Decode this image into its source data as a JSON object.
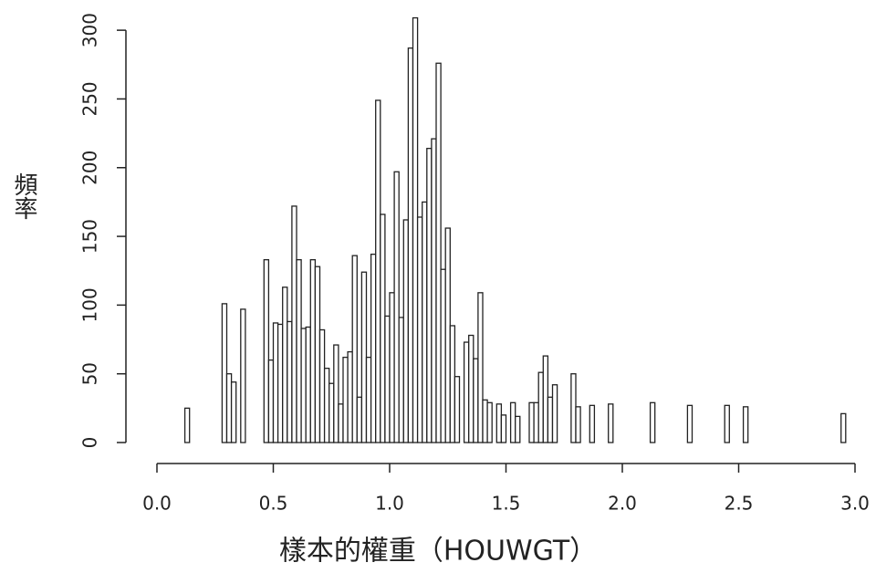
{
  "chart_data": {
    "type": "histogram",
    "xlabel": "樣本的權重（HOUWGT）",
    "ylabel": "頻率",
    "bins": [
      0,
      0.02,
      0.04,
      0.06,
      0.08,
      0.1,
      0.12,
      0.14,
      0.16,
      0.18,
      0.2,
      0.22,
      0.24,
      0.26,
      0.28,
      0.3,
      0.32,
      0.34,
      0.36,
      0.38,
      0.4,
      0.42,
      0.44,
      0.46,
      0.48,
      0.5,
      0.52,
      0.54,
      0.56,
      0.58,
      0.6,
      0.62,
      0.64,
      0.66,
      0.68,
      0.7,
      0.72,
      0.74,
      0.76,
      0.78,
      0.8,
      0.82,
      0.84,
      0.86,
      0.88,
      0.9,
      0.92,
      0.94,
      0.96,
      0.98,
      1,
      1.02,
      1.04,
      1.06,
      1.08,
      1.1,
      1.12,
      1.14,
      1.16,
      1.18,
      1.2,
      1.22,
      1.24,
      1.26,
      1.28,
      1.3,
      1.32,
      1.34,
      1.36,
      1.38,
      1.4,
      1.42,
      1.44,
      1.46,
      1.48,
      1.5,
      1.52,
      1.54,
      1.56,
      1.58,
      1.6,
      1.62,
      1.64,
      1.66,
      1.68,
      1.7,
      1.72,
      1.74,
      1.76,
      1.78,
      1.8,
      1.82,
      1.84,
      1.86,
      1.88,
      1.9,
      1.92,
      1.94,
      1.96,
      1.98,
      2,
      2.02,
      2.04,
      2.06,
      2.08,
      2.1,
      2.12,
      2.14,
      2.16,
      2.18,
      2.2,
      2.22,
      2.24,
      2.26,
      2.28,
      2.3,
      2.32,
      2.34,
      2.36,
      2.38,
      2.4,
      2.42,
      2.44,
      2.46,
      2.48,
      2.5,
      2.52,
      2.54,
      2.56,
      2.58,
      2.6,
      2.62,
      2.64,
      2.66,
      2.68,
      2.7,
      2.72,
      2.74,
      2.76,
      2.78,
      2.8,
      2.82,
      2.84,
      2.86,
      2.88,
      2.9,
      2.92,
      2.94,
      2.96,
      2.98,
      3
    ],
    "counts": [
      0,
      0,
      0,
      0,
      0,
      0,
      25,
      0,
      0,
      0,
      0,
      0,
      0,
      0,
      101,
      50,
      44,
      0,
      97,
      0,
      0,
      0,
      0,
      133,
      60,
      87,
      86,
      113,
      88,
      172,
      133,
      83,
      84,
      133,
      128,
      82,
      54,
      43,
      71,
      28,
      62,
      66,
      136,
      33,
      124,
      62,
      137,
      249,
      166,
      92,
      109,
      197,
      91,
      162,
      287,
      309,
      164,
      175,
      214,
      221,
      276,
      126,
      156,
      85,
      48,
      0,
      73,
      78,
      61,
      109,
      31,
      29,
      0,
      28,
      20,
      0,
      29,
      19,
      0,
      0,
      29,
      29,
      51,
      63,
      33,
      42,
      0,
      0,
      0,
      50,
      26,
      0,
      0,
      27,
      0,
      0,
      0,
      28,
      0,
      0,
      0,
      0,
      0,
      0,
      0,
      0,
      29,
      0,
      0,
      0,
      0,
      0,
      0,
      0,
      27,
      0,
      0,
      0,
      0,
      0,
      0,
      0,
      27,
      0,
      0,
      0,
      26,
      0,
      0,
      0,
      0,
      0,
      0,
      0,
      0,
      0,
      0,
      0,
      0,
      0,
      0,
      0,
      0,
      0,
      0,
      0,
      0,
      21,
      0,
      0
    ],
    "color": "#ffffff",
    "edgecolor": "#222222",
    "xlim": [
      0,
      3
    ],
    "xticks": [
      {
        "value": 0,
        "label": "0.0"
      },
      0.5,
      {
        "value": 1,
        "label": "1.0"
      },
      1.5,
      {
        "value": 2,
        "label": "2.0"
      },
      2.5,
      {
        "value": 3,
        "label": "3.0"
      }
    ],
    "ylim": [
      0,
      320
    ],
    "yticks": [
      0,
      50,
      100,
      150,
      200,
      250,
      300
    ]
  }
}
